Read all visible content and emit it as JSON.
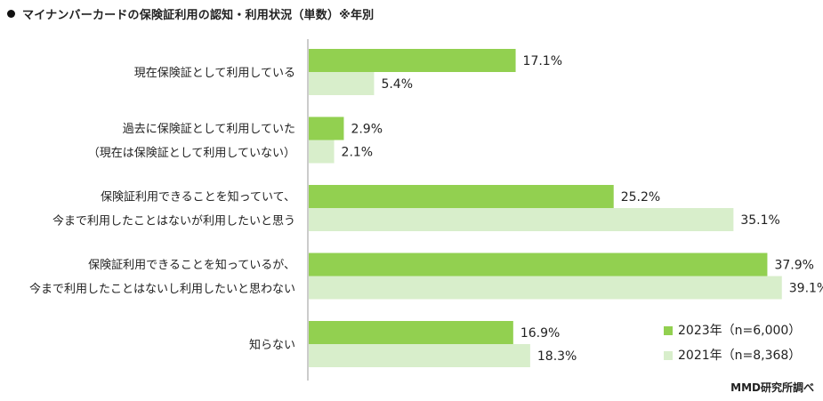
{
  "title": "マイナンバーカードの保険証利用の認知・利用状況（単数）※年別",
  "source": "MMD研究所調べ",
  "colors": {
    "series_2023": "#92d050",
    "series_2021": "#d8eecb",
    "axis": "#999999"
  },
  "chart_data": {
    "type": "bar",
    "orientation": "horizontal",
    "title": "マイナンバーカードの保険証利用の認知・利用状況（単数）※年別",
    "categories": [
      [
        "現在保険証として利用している"
      ],
      [
        "過去に保険証として利用していた",
        "（現在は保険証として利用していない）"
      ],
      [
        "保険証利用できることを知っていて、",
        "今まで利用したことはないが利用したいと思う"
      ],
      [
        "保険証利用できることを知っているが、",
        "今まで利用したことはないし利用したいと思わない"
      ],
      [
        "知らない"
      ]
    ],
    "series": [
      {
        "name": "2023年（n=6,000）",
        "values": [
          17.1,
          2.9,
          25.2,
          37.9,
          16.9
        ]
      },
      {
        "name": "2021年（n=8,368）",
        "values": [
          5.4,
          2.1,
          35.1,
          39.1,
          18.3
        ]
      }
    ],
    "value_suffix": "%",
    "xlim": [
      0,
      40
    ],
    "grid": false,
    "legend_position": "bottom-right"
  }
}
